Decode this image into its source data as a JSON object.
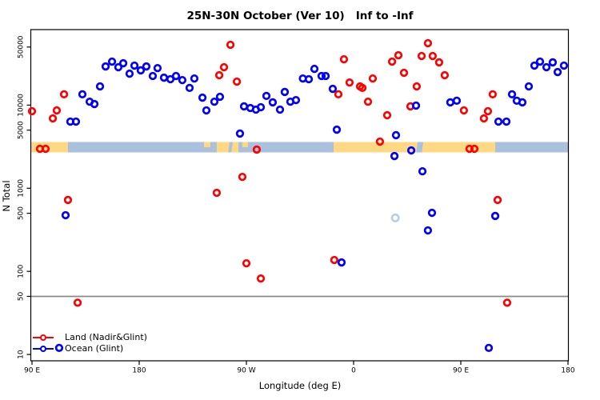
{
  "chart_data": {
    "type": "scatter",
    "title": "25N-30N October (Ver 10)   Inf to -Inf",
    "xlabel": "Longitude (deg E)",
    "ylabel": "N Total",
    "x_axis": {
      "range_deg": [
        88,
        541
      ],
      "ticks": [
        {
          "deg": 90,
          "label": "90 E"
        },
        {
          "deg": 180,
          "label": "180"
        },
        {
          "deg": 270,
          "label": "90 W"
        },
        {
          "deg": 360,
          "label": "0"
        },
        {
          "deg": 450,
          "label": "90 E"
        },
        {
          "deg": 540,
          "label": "180"
        }
      ]
    },
    "y_axis": {
      "scale": "log",
      "range": [
        8,
        81000
      ],
      "ticks": [
        {
          "value": 50000,
          "label": "50000"
        },
        {
          "value": 10000,
          "label": "10000"
        },
        {
          "value": 5000,
          "label": "5000"
        },
        {
          "value": 1000,
          "label": "1000"
        },
        {
          "value": 500,
          "label": "500"
        },
        {
          "value": 100,
          "label": "100"
        },
        {
          "value": 50,
          "label": "50"
        },
        {
          "value": 10,
          "label": "10"
        }
      ]
    },
    "ref_line": {
      "value": 50,
      "color": "#8a8a8a"
    },
    "surface_band": {
      "n_center": 3100,
      "ocean_color": "#a9c1dc",
      "land_color": "#ffd884",
      "land_segments_deg": [
        [
          88,
          120.2
        ],
        [
          245.1,
          263.3
        ],
        [
          343.2,
          478.9
        ]
      ],
      "ocean_slashes_deg": [
        [
          255.9,
          258.6
        ],
        [
          413.8,
          418.5
        ]
      ],
      "land_streaks_deg": [
        [
          234.4,
          239.8
        ],
        [
          266.6,
          271.3
        ]
      ],
      "faint_ring": {
        "deg": 395,
        "n": 440,
        "color": "#b9cde4"
      }
    },
    "legend": [
      {
        "label": "Land (Nadir&Glint)",
        "color": "#ff0000"
      },
      {
        "label": "Ocean (Glint)",
        "color": "#0000ff"
      }
    ],
    "series": [
      {
        "name": "Land (Nadir&Glint)",
        "color": "#ff0000",
        "points": [
          [
            90.0,
            8450
          ],
          [
            96.7,
            2980
          ],
          [
            101.4,
            2980
          ],
          [
            107.5,
            6920
          ],
          [
            110.8,
            8640
          ],
          [
            116.9,
            13500
          ],
          [
            120.2,
            723
          ],
          [
            128.3,
            42
          ],
          [
            245.1,
            881
          ],
          [
            247.2,
            22900
          ],
          [
            251.2,
            28600
          ],
          [
            256.6,
            53200
          ],
          [
            262.0,
            19200
          ],
          [
            266.6,
            1370
          ],
          [
            270.0,
            125
          ],
          [
            278.7,
            2920
          ],
          [
            282.1,
            82
          ],
          [
            343.8,
            137
          ],
          [
            347.2,
            13500
          ],
          [
            351.9,
            35600
          ],
          [
            356.6,
            18700
          ],
          [
            365.4,
            16800
          ],
          [
            367.4,
            16100
          ],
          [
            372.1,
            11000
          ],
          [
            376.1,
            20900
          ],
          [
            382.1,
            3640
          ],
          [
            388.2,
            7560
          ],
          [
            392.3,
            33400
          ],
          [
            397.6,
            39800
          ],
          [
            402.3,
            24500
          ],
          [
            407.7,
            9660
          ],
          [
            413.0,
            16800
          ],
          [
            417.1,
            39000
          ],
          [
            422.4,
            55600
          ],
          [
            426.4,
            39000
          ],
          [
            431.8,
            32700
          ],
          [
            436.5,
            22900
          ],
          [
            452.6,
            8640
          ],
          [
            457.3,
            2980
          ],
          [
            461.4,
            2980
          ],
          [
            469.4,
            6920
          ],
          [
            472.8,
            8450
          ],
          [
            476.8,
            13500
          ],
          [
            480.9,
            723
          ],
          [
            488.9,
            42
          ]
        ]
      },
      {
        "name": "Ocean (Glint)",
        "color": "#0000ff",
        "points": [
          [
            112.8,
            12
          ],
          [
            118.2,
            474
          ],
          [
            122.2,
            6340
          ],
          [
            126.9,
            6340
          ],
          [
            132.3,
            13500
          ],
          [
            138.4,
            11000
          ],
          [
            142.4,
            10300
          ],
          [
            147.1,
            16800
          ],
          [
            151.8,
            29200
          ],
          [
            157.2,
            33400
          ],
          [
            162.5,
            28600
          ],
          [
            166.6,
            31900
          ],
          [
            171.9,
            23900
          ],
          [
            176.0,
            29900
          ],
          [
            181.3,
            26200
          ],
          [
            186.0,
            29200
          ],
          [
            191.4,
            22400
          ],
          [
            195.4,
            27900
          ],
          [
            200.8,
            21400
          ],
          [
            206.2,
            20500
          ],
          [
            210.9,
            22400
          ],
          [
            216.2,
            20000
          ],
          [
            222.3,
            16100
          ],
          [
            226.3,
            20900
          ],
          [
            233.1,
            12300
          ],
          [
            236.4,
            8640
          ],
          [
            243.1,
            11000
          ],
          [
            247.8,
            12600
          ],
          [
            264.6,
            4550
          ],
          [
            268.0,
            9660
          ],
          [
            273.3,
            9230
          ],
          [
            278.0,
            8830
          ],
          [
            282.1,
            9440
          ],
          [
            286.8,
            12900
          ],
          [
            292.1,
            10800
          ],
          [
            298.2,
            8830
          ],
          [
            302.2,
            14400
          ],
          [
            306.9,
            11000
          ],
          [
            311.6,
            11500
          ],
          [
            317.4,
            20900
          ],
          [
            322.4,
            20500
          ],
          [
            327.1,
            27300
          ],
          [
            333.1,
            22400
          ],
          [
            336.5,
            22400
          ],
          [
            342.5,
            15700
          ],
          [
            345.9,
            5070
          ],
          [
            349.9,
            128
          ],
          [
            394.3,
            2440
          ],
          [
            395.6,
            4350
          ],
          [
            408.4,
            2850
          ],
          [
            412.4,
            9870
          ],
          [
            417.8,
            1600
          ],
          [
            422.4,
            311
          ],
          [
            425.8,
            506
          ],
          [
            441.2,
            10800
          ],
          [
            446.6,
            11300
          ],
          [
            473.5,
            12
          ],
          [
            478.9,
            464
          ],
          [
            481.6,
            6340
          ],
          [
            488.3,
            6340
          ],
          [
            493.0,
            13500
          ],
          [
            497.0,
            11300
          ],
          [
            501.7,
            10800
          ],
          [
            507.1,
            16800
          ],
          [
            511.8,
            29900
          ],
          [
            516.5,
            33400
          ],
          [
            521.9,
            28600
          ],
          [
            527.2,
            32700
          ],
          [
            531.3,
            25000
          ],
          [
            536.6,
            29900
          ]
        ]
      }
    ]
  }
}
